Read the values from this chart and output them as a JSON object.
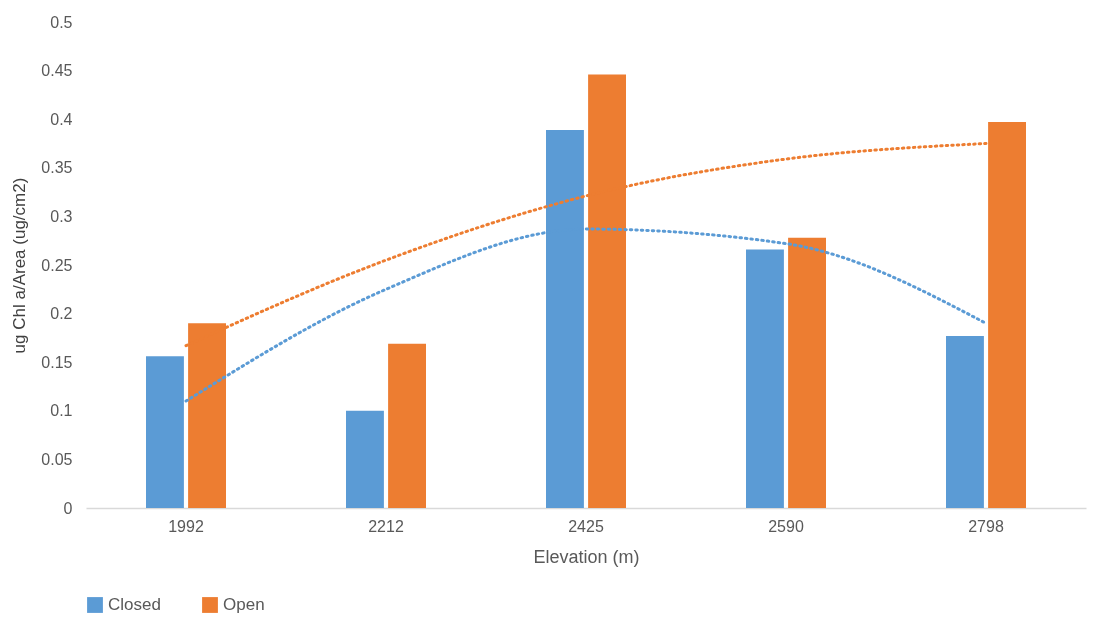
{
  "chart_data": {
    "type": "bar",
    "xlabel": "Elevation (m)",
    "ylabel": "ug Chl a/Area (ug/cm2)",
    "categories": [
      "1992",
      "2212",
      "2425",
      "2590",
      "2798"
    ],
    "series": [
      {
        "name": "Closed",
        "color": "#5b9bd5",
        "values": [
          0.156,
          0.1,
          0.389,
          0.266,
          0.177
        ]
      },
      {
        "name": "Open",
        "color": "#ed7d31",
        "values": [
          0.19,
          0.169,
          0.446,
          0.278,
          0.397
        ]
      },
      {
        "type": "line",
        "color": "#5b9bd5",
        "line_style": "dotted",
        "values": [
          0.11,
          0.225,
          0.287,
          0.272,
          0.19
        ]
      },
      {
        "type": "line",
        "color": "#ed7d31",
        "line_style": "dotted",
        "values": [
          0.167,
          0.255,
          0.321,
          0.359,
          0.375
        ]
      }
    ],
    "ylim": [
      0,
      0.5
    ],
    "yticks": [
      0,
      0.05,
      0.1,
      0.15,
      0.2,
      0.25,
      0.3,
      0.35,
      0.4,
      0.45,
      0.5
    ],
    "legend": "bottom"
  }
}
